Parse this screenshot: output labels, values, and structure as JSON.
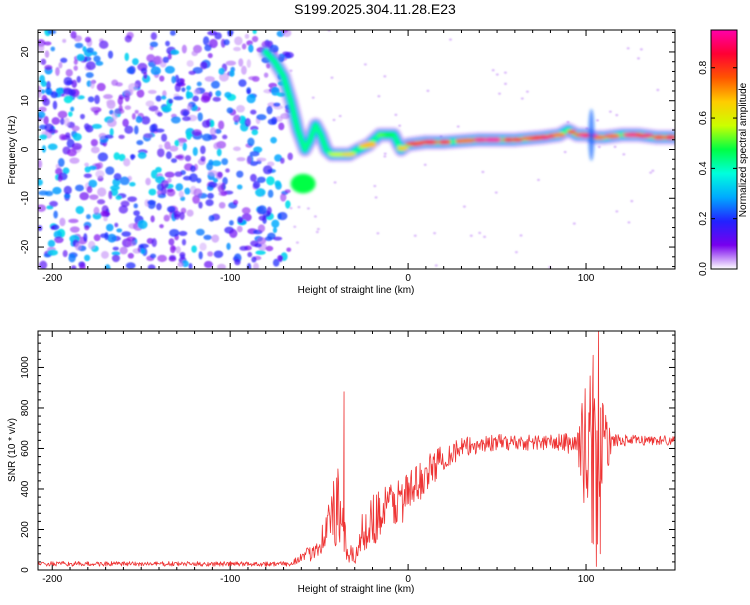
{
  "title": "S199.2025.304.11.28.E23",
  "chart_data": [
    {
      "type": "heatmap",
      "xlabel": "Height of straight line (km)",
      "ylabel": "Frequency (Hz)",
      "xlim": [
        -208,
        150
      ],
      "ylim": [
        -24.5,
        24.5
      ],
      "xticks": [
        -200,
        -100,
        0,
        100
      ],
      "yticks": [
        -20,
        -10,
        0,
        10,
        20
      ],
      "colorbar": {
        "label": "Normalized spectral amplitude",
        "range": [
          0,
          0.95
        ],
        "ticks": [
          "0.0",
          "0.2",
          "0.4",
          "0.6",
          "0.8"
        ],
        "tick_values": [
          0,
          0.2,
          0.4,
          0.6,
          0.8
        ],
        "colors": [
          "#ffffff",
          "#7700ee",
          "#2222ff",
          "#00aaff",
          "#00ffdd",
          "#00ff44",
          "#ccff00",
          "#ffcc00",
          "#ff5500",
          "#ff0033",
          "#ff00aa"
        ]
      },
      "ridge": {
        "description": "dominant frequency track vs height",
        "x": [
          -80,
          -75,
          -70,
          -66,
          -62,
          -58,
          -55,
          -52,
          -49,
          -46,
          -43,
          -40,
          -37,
          -33,
          -28,
          -22,
          -16,
          -12,
          -8,
          -4,
          0,
          10,
          20,
          40,
          60,
          75,
          85,
          90,
          95,
          100,
          105,
          110,
          120,
          130,
          140,
          150
        ],
        "y": [
          20,
          18,
          15,
          10,
          4,
          0,
          2,
          5,
          3,
          0,
          -1,
          -1,
          -1,
          -1,
          0,
          1,
          3,
          3,
          3,
          0,
          1,
          1.5,
          1.5,
          2,
          2,
          2.5,
          3,
          4,
          3,
          3,
          2.5,
          2.5,
          3,
          3,
          2.5,
          2.5
        ]
      },
      "blob": {
        "x": [
          -66,
          -52
        ],
        "y": [
          -9,
          -5
        ],
        "level": 0.5
      },
      "noise_region": {
        "x": [
          -208,
          -70
        ],
        "level_max": 0.35
      }
    },
    {
      "type": "line",
      "xlabel": "Height of straight line (km)",
      "ylabel": "SNR (10 * v/v)",
      "xlim": [
        -208,
        150
      ],
      "ylim": [
        0,
        1180
      ],
      "xticks": [
        -200,
        -100,
        0,
        100
      ],
      "yticks": [
        0,
        200,
        400,
        600,
        800,
        1000
      ],
      "color": "#ee3333",
      "baseline": {
        "x": [
          -208,
          -65
        ],
        "mean": 30,
        "noise": 12
      },
      "envelope": {
        "x": [
          -65,
          -55,
          -48,
          -44,
          -40,
          -38,
          -36,
          -33,
          -30,
          -25,
          -20,
          -10,
          0,
          10,
          20,
          30,
          40,
          50,
          60,
          80,
          95,
          100,
          103,
          106,
          108,
          110,
          115,
          130,
          150
        ],
        "mean": [
          40,
          80,
          160,
          250,
          300,
          250,
          150,
          80,
          60,
          200,
          250,
          320,
          370,
          470,
          560,
          600,
          620,
          630,
          630,
          630,
          625,
          600,
          550,
          500,
          550,
          600,
          640,
          640,
          640
        ],
        "noise": [
          15,
          40,
          80,
          130,
          230,
          170,
          110,
          50,
          40,
          110,
          130,
          130,
          120,
          90,
          70,
          55,
          45,
          40,
          40,
          40,
          60,
          350,
          450,
          500,
          450,
          200,
          30,
          25,
          25
        ]
      },
      "peaks": [
        {
          "x": -36,
          "y": 880
        },
        {
          "x": 104,
          "y": 1060
        },
        {
          "x": 107,
          "y": 1180
        },
        {
          "x": 108,
          "y": 80
        }
      ]
    }
  ]
}
